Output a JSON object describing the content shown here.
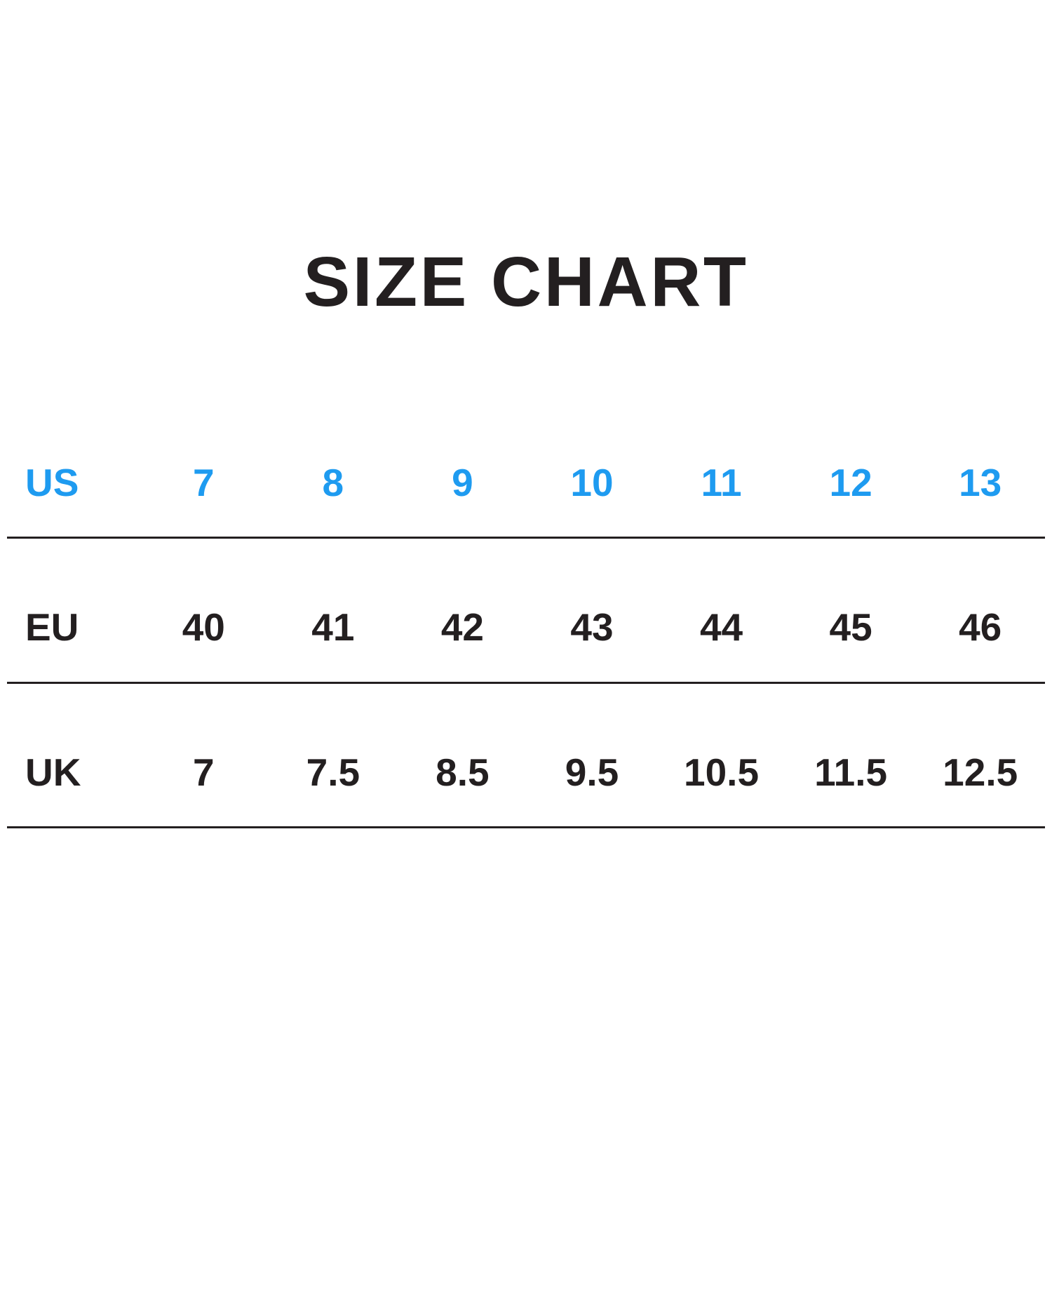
{
  "title": "SIZE CHART",
  "colors": {
    "accent_blue": "#1e9bf0",
    "text_dark": "#231f20"
  },
  "chart_data": {
    "type": "table",
    "title": "SIZE CHART",
    "legend_position": "none",
    "grid": "horizontal-rules-only",
    "rows": [
      {
        "label": "US",
        "highlight": true,
        "values": [
          "7",
          "8",
          "9",
          "10",
          "11",
          "12",
          "13"
        ]
      },
      {
        "label": "EU",
        "highlight": false,
        "values": [
          "40",
          "41",
          "42",
          "43",
          "44",
          "45",
          "46"
        ]
      },
      {
        "label": "UK",
        "highlight": false,
        "values": [
          "7",
          "7.5",
          "8.5",
          "9.5",
          "10.5",
          "11.5",
          "12.5"
        ]
      }
    ]
  }
}
